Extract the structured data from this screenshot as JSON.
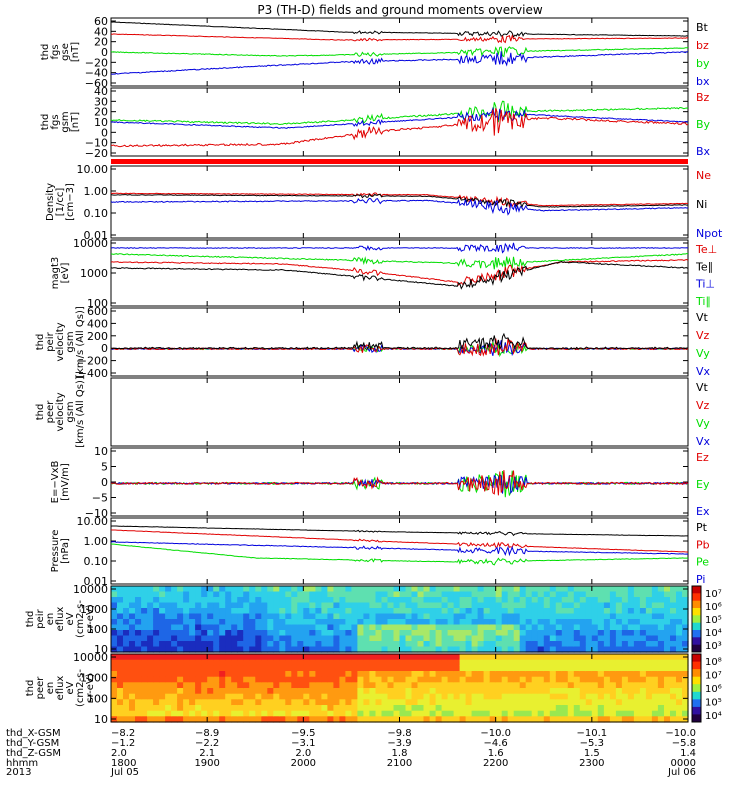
{
  "title": "P3 (TH-D) fields and ground moments overview",
  "colors": {
    "black": "#000000",
    "red": "#e00000",
    "green": "#00dd00",
    "blue": "#0000dd"
  },
  "panels": [
    {
      "id": "fgs-gse",
      "ylabel": [
        "thd",
        "fgs",
        "gse",
        "[nT]"
      ],
      "yticks": [
        "60",
        "40",
        "20",
        "0",
        "−20",
        "−40",
        "−60"
      ],
      "legend": [
        {
          "text": "Bt",
          "color": "black"
        },
        {
          "text": "bz",
          "color": "red"
        },
        {
          "text": "by",
          "color": "green"
        },
        {
          "text": "bx",
          "color": "blue"
        }
      ]
    },
    {
      "id": "fgs-gsm",
      "ylabel": [
        "thd",
        "fgs",
        "gsm",
        "[nT]"
      ],
      "yticks": [
        "40",
        "30",
        "20",
        "10",
        "0",
        "−10",
        "−20"
      ],
      "legend": [
        {
          "text": "Bz",
          "color": "red"
        },
        {
          "text": "By",
          "color": "green"
        },
        {
          "text": "Bx",
          "color": "blue"
        }
      ]
    },
    {
      "id": "density",
      "ylabel": [
        "Density",
        "[1/cc]",
        "[cm−3]"
      ],
      "yticks": [
        "10.00",
        "1.00",
        "0.10",
        "0.01"
      ],
      "legend": [
        {
          "text": "Ne",
          "color": "red"
        },
        {
          "text": "Ni",
          "color": "black"
        },
        {
          "text": "Npot",
          "color": "blue"
        }
      ]
    },
    {
      "id": "temperature",
      "ylabel": [
        "magt3",
        "[eV]"
      ],
      "yticks": [
        "10000",
        "1000",
        "100"
      ],
      "legend": [
        {
          "text": "Te⊥",
          "color": "red"
        },
        {
          "text": "Te∥",
          "color": "black"
        },
        {
          "text": "Ti⊥",
          "color": "blue"
        },
        {
          "text": "Ti∥",
          "color": "green"
        }
      ]
    },
    {
      "id": "peir-velocity",
      "ylabel": [
        "thd",
        "peir",
        "velocity",
        "gsm",
        "[km/s (All Qs)]"
      ],
      "yticks": [
        "600",
        "400",
        "200",
        "0",
        "−200",
        "−400"
      ],
      "legend": [
        {
          "text": "Vt",
          "color": "black"
        },
        {
          "text": "Vz",
          "color": "red"
        },
        {
          "text": "Vy",
          "color": "green"
        },
        {
          "text": "Vx",
          "color": "blue"
        }
      ]
    },
    {
      "id": "peer-velocity",
      "ylabel": [
        "thd",
        "peer",
        "velocity",
        "gsm",
        "[km/s (All Qs)]"
      ],
      "yticks": [],
      "legend": [
        {
          "text": "Vt",
          "color": "black"
        },
        {
          "text": "Vz",
          "color": "red"
        },
        {
          "text": "Vy",
          "color": "green"
        },
        {
          "text": "Vx",
          "color": "blue"
        }
      ]
    },
    {
      "id": "efield",
      "ylabel": [
        "E=−VxB",
        "[mV/m]"
      ],
      "yticks": [
        "10",
        "5",
        "0",
        "−5",
        "−10"
      ],
      "legend": [
        {
          "text": "Ez",
          "color": "red"
        },
        {
          "text": "Ey",
          "color": "green"
        },
        {
          "text": "Ex",
          "color": "blue"
        }
      ]
    },
    {
      "id": "pressure",
      "ylabel": [
        "Pressure",
        "[nPa]"
      ],
      "yticks": [
        "10.00",
        "1.00",
        "0.10",
        "0.01"
      ],
      "legend": [
        {
          "text": "Pt",
          "color": "black"
        },
        {
          "text": "Pb",
          "color": "red"
        },
        {
          "text": "Pe",
          "color": "green"
        },
        {
          "text": "Pi",
          "color": "blue"
        }
      ]
    },
    {
      "id": "peir-spec",
      "ylabel": [
        "thd",
        "peir",
        "en",
        "eflux",
        "eV",
        "(cm2-s-",
        "sr-eV)"
      ],
      "yticks": [
        "10000",
        "1000",
        "100",
        "10"
      ],
      "colorbar": [
        "10⁷",
        "10⁶",
        "10⁵",
        "10⁴",
        "10³"
      ]
    },
    {
      "id": "peer-spec",
      "ylabel": [
        "thd",
        "peer",
        "en",
        "eflux",
        "eV",
        "(cm2-s-",
        "sr-eV)"
      ],
      "yticks": [
        "10000",
        "1000",
        "100",
        "10"
      ],
      "colorbar": [
        "10⁸",
        "10⁷",
        "10⁶",
        "10⁵",
        "10⁴"
      ]
    }
  ],
  "ephemeris": {
    "labels": [
      "thd_X-GSM",
      "thd_Y-GSM",
      "thd_Z-GSM",
      "hhmm",
      "2013"
    ],
    "x_gsm": [
      "−8.2",
      "−8.9",
      "−9.5",
      "−9.8",
      "−10.0",
      "−10.1",
      "−10.0"
    ],
    "y_gsm": [
      "−1.2",
      "−2.2",
      "−3.1",
      "−3.9",
      "−4.6",
      "−5.3",
      "−5.8"
    ],
    "z_gsm": [
      "2.0",
      "2.1",
      "2.0",
      "1.8",
      "1.6",
      "1.5",
      "1.4"
    ],
    "hhmm": [
      "1800",
      "1900",
      "2000",
      "2100",
      "2200",
      "2300",
      "0000"
    ],
    "date_start": "Jul 05",
    "date_end": "Jul 06"
  }
}
